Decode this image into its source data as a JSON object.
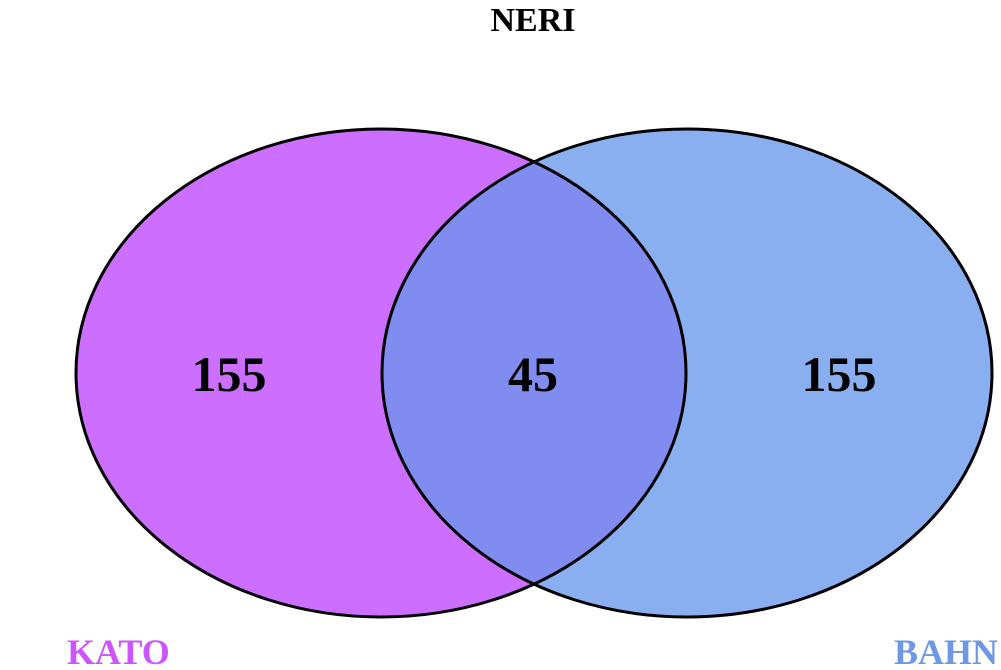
{
  "title": "NERI",
  "sets": [
    {
      "name": "KATO",
      "color": "#cc6eff",
      "label_color": "#cc55ff"
    },
    {
      "name": "BAHN",
      "color": "#8aaff0",
      "label_color": "#6e98e6"
    }
  ],
  "intersection_color": "#818cf0",
  "regions": {
    "kato_only": "155",
    "both": "45",
    "bahn_only": "155"
  }
}
